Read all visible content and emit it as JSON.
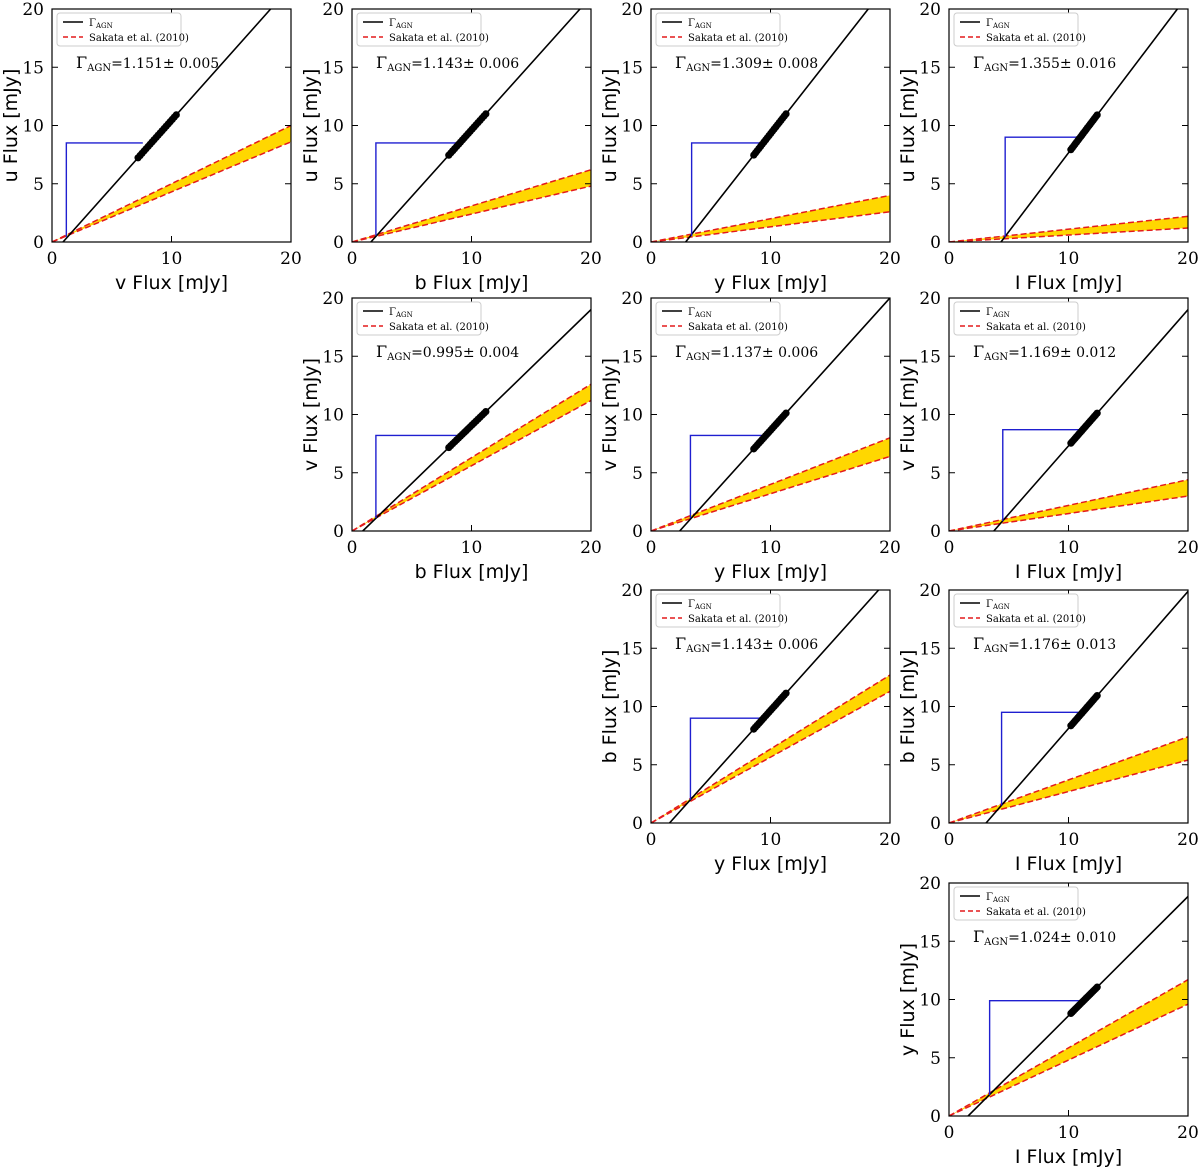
{
  "figure": {
    "legend": {
      "agn_label": "Γ",
      "agn_label_sub": "AGN",
      "sakata_label": "Sakata et al. (2010)"
    },
    "gamma_symbol": "Γ",
    "gamma_sub": "AGN"
  },
  "chart_data": [
    {
      "type": "scatter",
      "position": "row1-col1",
      "xlabel": "v Flux [mJy]",
      "ylabel": "u Flux [mJy]",
      "xlim": [
        0,
        20
      ],
      "ylim": [
        0,
        20
      ],
      "xticks": [
        "0",
        "10",
        "20"
      ],
      "yticks": [
        "0",
        "5",
        "10",
        "15",
        "20"
      ],
      "annotation_value": "=1.151± 0.005",
      "agn_line": {
        "slope": 1.151,
        "x_intercept": 0.92
      },
      "points": {
        "x_range": [
          7.2,
          10.4
        ],
        "count": 20
      },
      "sakata_band": {
        "upper_slope": 0.5,
        "lower_slope": 0.43,
        "origin": [
          0.0,
          0.0
        ]
      },
      "intersection": [
        1.2,
        0.45
      ],
      "blue_marker": {
        "x": 1.2,
        "y": 8.5,
        "x_end": 7.6
      }
    },
    {
      "type": "scatter",
      "position": "row1-col2",
      "xlabel": "b Flux [mJy]",
      "ylabel": "u Flux [mJy]",
      "xlim": [
        0,
        20
      ],
      "ylim": [
        0,
        20
      ],
      "xticks": [
        "0",
        "10",
        "20"
      ],
      "yticks": [
        "0",
        "5",
        "10",
        "15",
        "20"
      ],
      "annotation_value": "=1.143± 0.006",
      "agn_line": {
        "slope": 1.143,
        "x_intercept": 1.58
      },
      "points": {
        "x_range": [
          8.1,
          11.2
        ],
        "count": 20
      },
      "sakata_band": {
        "upper_slope": 0.31,
        "lower_slope": 0.24,
        "origin": [
          0.0,
          0.0
        ]
      },
      "intersection": [
        2.0,
        0.55
      ],
      "blue_marker": {
        "x": 2.0,
        "y": 8.5,
        "x_end": 8.7
      }
    },
    {
      "type": "scatter",
      "position": "row1-col3",
      "xlabel": "y Flux [mJy]",
      "ylabel": "u Flux [mJy]",
      "xlim": [
        0,
        20
      ],
      "ylim": [
        0,
        20
      ],
      "xticks": [
        "0",
        "10",
        "20"
      ],
      "yticks": [
        "0",
        "5",
        "10",
        "15",
        "20"
      ],
      "annotation_value": "=1.309± 0.008",
      "agn_line": {
        "slope": 1.309,
        "x_intercept": 2.9
      },
      "points": {
        "x_range": [
          8.6,
          11.3
        ],
        "count": 20
      },
      "sakata_band": {
        "upper_slope": 0.2,
        "lower_slope": 0.13,
        "origin": [
          0.0,
          0.0
        ]
      },
      "intersection": [
        3.4,
        0.5
      ],
      "blue_marker": {
        "x": 3.4,
        "y": 8.5,
        "x_end": 9.3
      }
    },
    {
      "type": "scatter",
      "position": "row1-col4",
      "xlabel": "I Flux [mJy]",
      "ylabel": "u Flux [mJy]",
      "xlim": [
        0,
        20
      ],
      "ylim": [
        0,
        20
      ],
      "xticks": [
        "0",
        "10",
        "20"
      ],
      "yticks": [
        "0",
        "5",
        "10",
        "15",
        "20"
      ],
      "annotation_value": "=1.355± 0.016",
      "agn_line": {
        "slope": 1.355,
        "x_intercept": 4.35
      },
      "points": {
        "x_range": [
          10.2,
          12.4
        ],
        "count": 20
      },
      "sakata_band": {
        "upper_slope": 0.11,
        "lower_slope": 0.06,
        "origin": [
          0.0,
          0.0
        ]
      },
      "intersection": [
        4.7,
        0.4
      ],
      "blue_marker": {
        "x": 4.7,
        "y": 9.0,
        "x_end": 11.0
      }
    },
    {
      "type": "scatter",
      "position": "row2-col2",
      "xlabel": "b Flux [mJy]",
      "ylabel": "v Flux [mJy]",
      "xlim": [
        0,
        20
      ],
      "ylim": [
        0,
        20
      ],
      "xticks": [
        "0",
        "10",
        "20"
      ],
      "yticks": [
        "0",
        "5",
        "10",
        "15",
        "20"
      ],
      "annotation_value": "=0.995± 0.004",
      "agn_line": {
        "slope": 0.995,
        "x_intercept": 0.9
      },
      "points": {
        "x_range": [
          8.1,
          11.2
        ],
        "count": 20
      },
      "sakata_band": {
        "upper_slope": 0.63,
        "lower_slope": 0.56,
        "origin": [
          0.0,
          0.0
        ]
      },
      "intersection": [
        2.0,
        1.1
      ],
      "blue_marker": {
        "x": 2.0,
        "y": 8.2,
        "x_end": 9.1
      }
    },
    {
      "type": "scatter",
      "position": "row2-col3",
      "xlabel": "y Flux [mJy]",
      "ylabel": "v Flux [mJy]",
      "xlim": [
        0,
        20
      ],
      "ylim": [
        0,
        20
      ],
      "xticks": [
        "0",
        "10",
        "20"
      ],
      "yticks": [
        "0",
        "5",
        "10",
        "15",
        "20"
      ],
      "annotation_value": "=1.137± 0.006",
      "agn_line": {
        "slope": 1.137,
        "x_intercept": 2.4
      },
      "points": {
        "x_range": [
          8.6,
          11.3
        ],
        "count": 20
      },
      "sakata_band": {
        "upper_slope": 0.4,
        "lower_slope": 0.32,
        "origin": [
          0.0,
          0.0
        ]
      },
      "intersection": [
        3.3,
        1.1
      ],
      "blue_marker": {
        "x": 3.3,
        "y": 8.2,
        "x_end": 9.6
      }
    },
    {
      "type": "scatter",
      "position": "row2-col4",
      "xlabel": "I Flux [mJy]",
      "ylabel": "v Flux [mJy]",
      "xlim": [
        0,
        20
      ],
      "ylim": [
        0,
        20
      ],
      "xticks": [
        "0",
        "10",
        "20"
      ],
      "yticks": [
        "0",
        "5",
        "10",
        "15",
        "20"
      ],
      "annotation_value": "=1.169± 0.012",
      "agn_line": {
        "slope": 1.169,
        "x_intercept": 3.75
      },
      "points": {
        "x_range": [
          10.2,
          12.4
        ],
        "count": 20
      },
      "sakata_band": {
        "upper_slope": 0.22,
        "lower_slope": 0.15,
        "origin": [
          0.0,
          0.0
        ]
      },
      "intersection": [
        4.5,
        0.85
      ],
      "blue_marker": {
        "x": 4.5,
        "y": 8.7,
        "x_end": 11.2
      }
    },
    {
      "type": "scatter",
      "position": "row3-col3",
      "xlabel": "y Flux [mJy]",
      "ylabel": "b Flux [mJy]",
      "xlim": [
        0,
        20
      ],
      "ylim": [
        0,
        20
      ],
      "xticks": [
        "0",
        "10",
        "20"
      ],
      "yticks": [
        "0",
        "5",
        "10",
        "15",
        "20"
      ],
      "annotation_value": "=1.143± 0.006",
      "agn_line": {
        "slope": 1.143,
        "x_intercept": 1.55
      },
      "points": {
        "x_range": [
          8.6,
          11.3
        ],
        "count": 20
      },
      "sakata_band": {
        "upper_slope": 0.635,
        "lower_slope": 0.565,
        "origin": [
          0.0,
          0.0
        ]
      },
      "intersection": [
        3.3,
        2.0
      ],
      "blue_marker": {
        "x": 3.3,
        "y": 9.0,
        "x_end": 9.4
      }
    },
    {
      "type": "scatter",
      "position": "row3-col4",
      "xlabel": "I Flux [mJy]",
      "ylabel": "b Flux [mJy]",
      "xlim": [
        0,
        20
      ],
      "ylim": [
        0,
        20
      ],
      "xticks": [
        "0",
        "10",
        "20"
      ],
      "yticks": [
        "0",
        "5",
        "10",
        "15",
        "20"
      ],
      "annotation_value": "=1.176± 0.013",
      "agn_line": {
        "slope": 1.176,
        "x_intercept": 3.1
      },
      "points": {
        "x_range": [
          10.2,
          12.4
        ],
        "count": 20
      },
      "sakata_band": {
        "upper_slope": 0.37,
        "lower_slope": 0.27,
        "origin": [
          0.0,
          0.0
        ]
      },
      "intersection": [
        4.4,
        1.5
      ],
      "blue_marker": {
        "x": 4.4,
        "y": 9.5,
        "x_end": 11.2
      }
    },
    {
      "type": "scatter",
      "position": "row4-col4",
      "xlabel": "I Flux [mJy]",
      "ylabel": "y Flux [mJy]",
      "xlim": [
        0,
        20
      ],
      "ylim": [
        0,
        20
      ],
      "xticks": [
        "0",
        "10",
        "20"
      ],
      "yticks": [
        "0",
        "5",
        "10",
        "15",
        "20"
      ],
      "annotation_value": "=1.024± 0.010",
      "agn_line": {
        "slope": 1.024,
        "x_intercept": 1.6
      },
      "points": {
        "x_range": [
          10.2,
          12.4
        ],
        "count": 20
      },
      "sakata_band": {
        "upper_slope": 0.585,
        "lower_slope": 0.48,
        "origin": [
          0.0,
          0.0
        ]
      },
      "intersection": [
        3.4,
        1.8
      ],
      "blue_marker": {
        "x": 3.4,
        "y": 9.9,
        "x_end": 11.3
      }
    }
  ]
}
